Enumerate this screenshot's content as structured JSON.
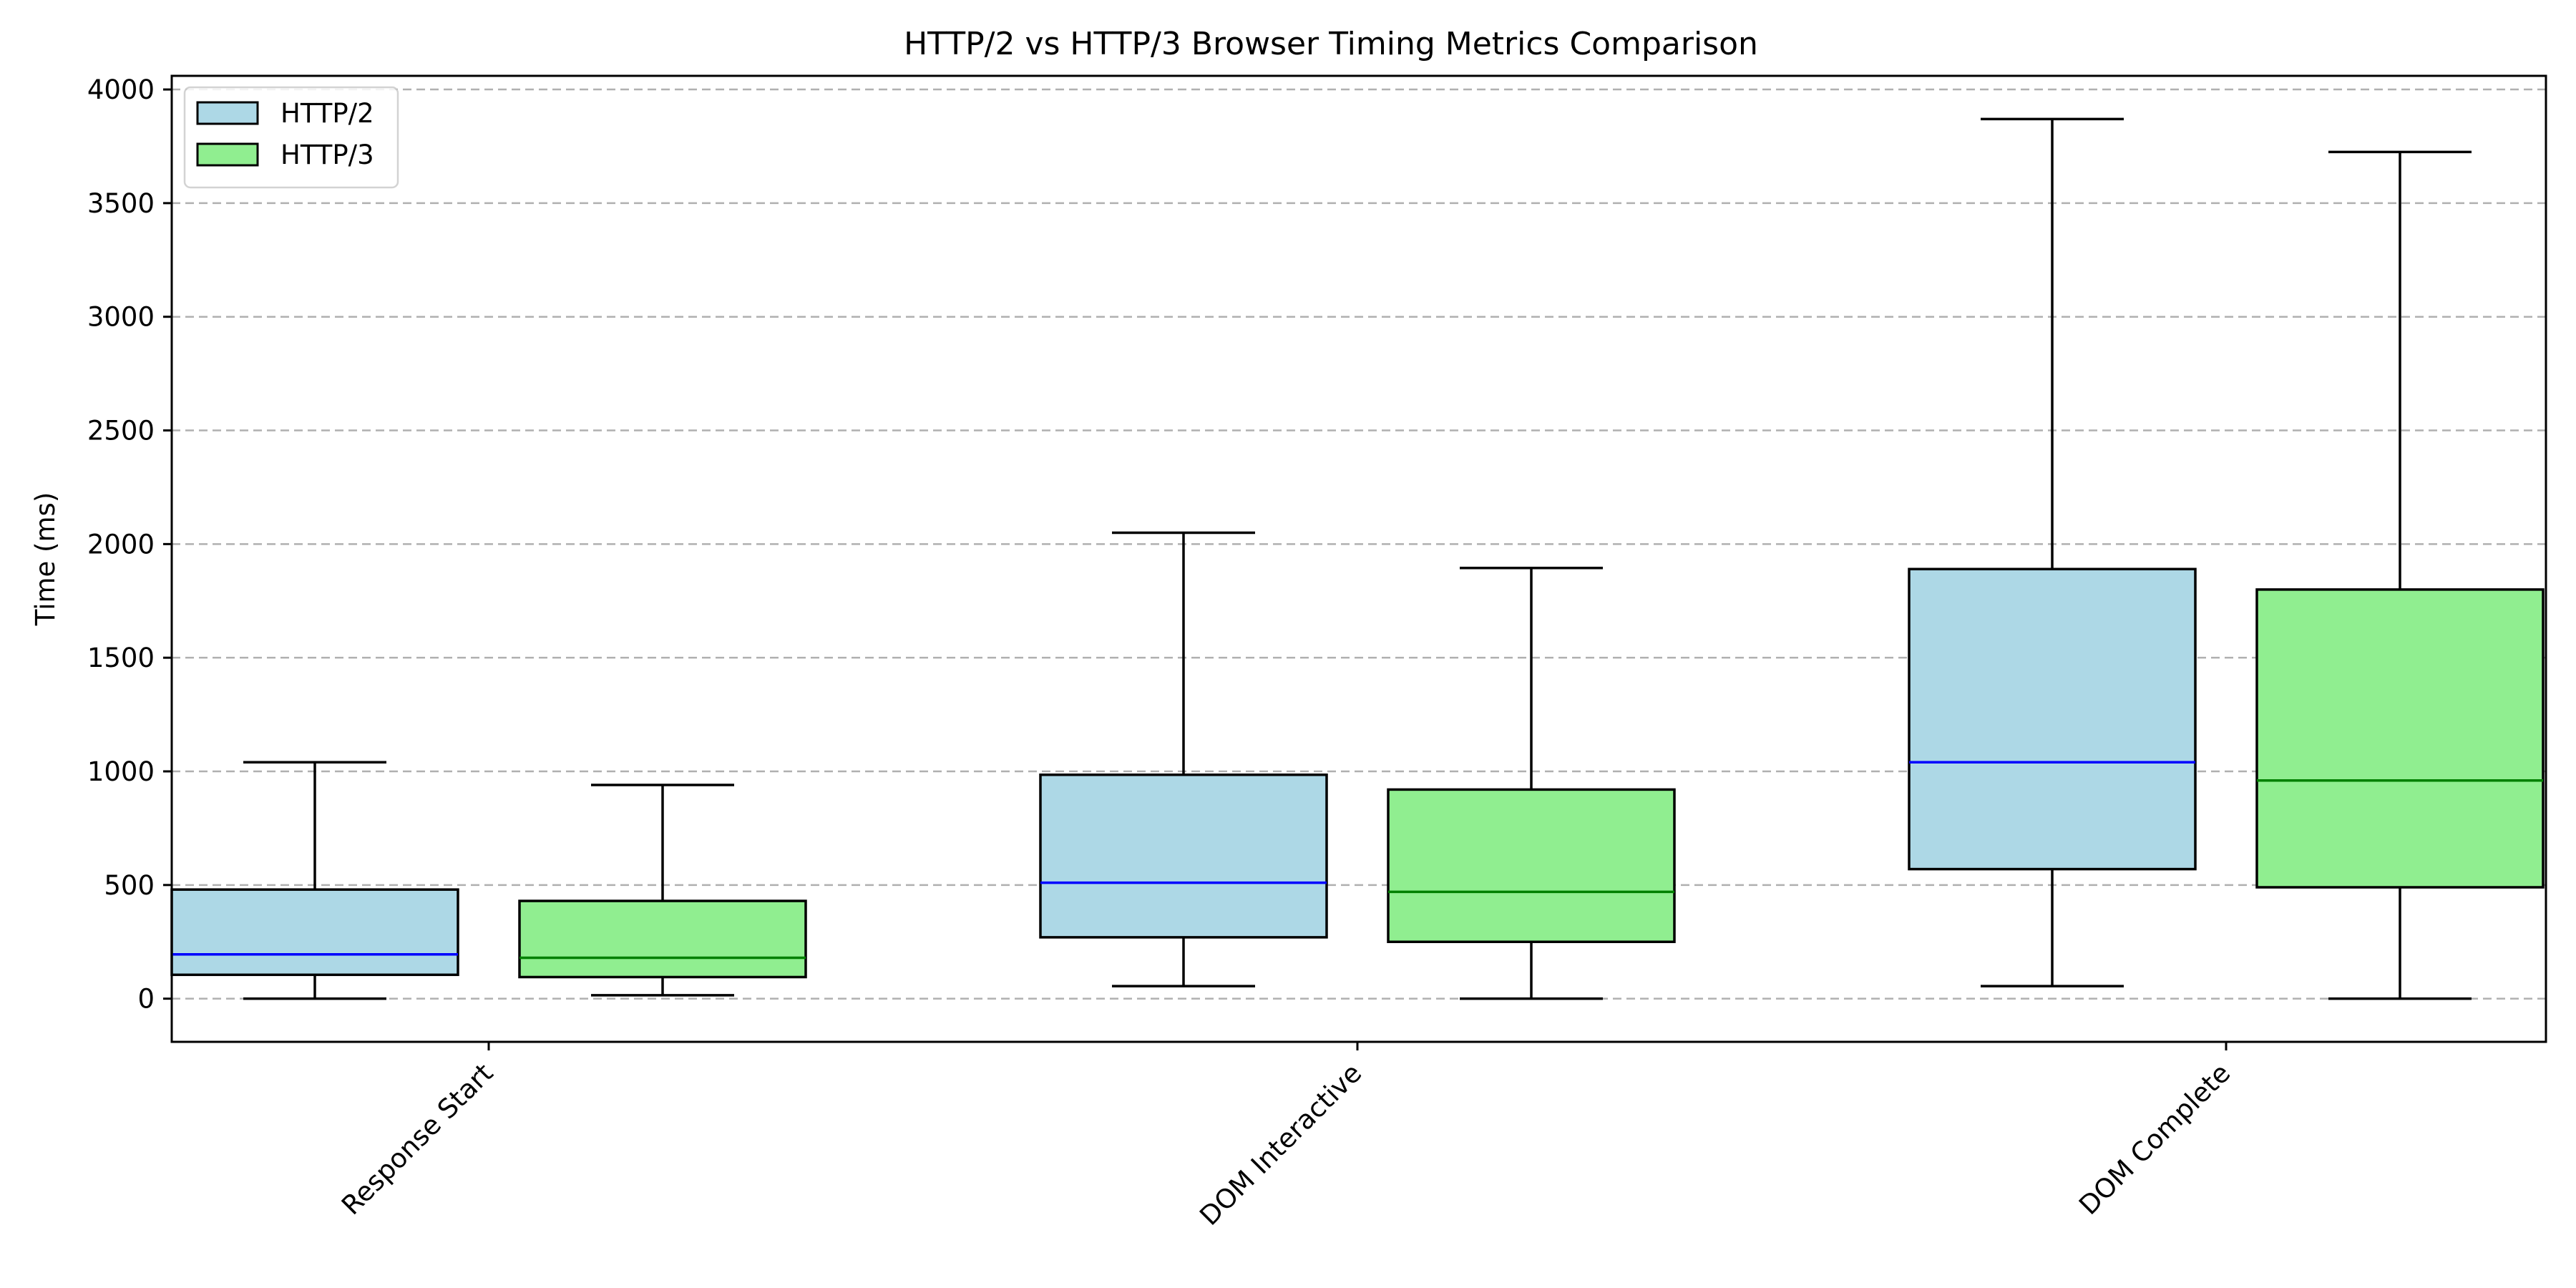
{
  "chart_data": {
    "type": "box",
    "title": "HTTP/2 vs HTTP/3 Browser Timing Metrics Comparison",
    "xlabel": "",
    "ylabel": "Time (ms)",
    "ylim": [
      -190,
      4060
    ],
    "yticks": [
      0,
      500,
      1000,
      1500,
      2000,
      2500,
      3000,
      3500,
      4000
    ],
    "grid": "horizontal dashed",
    "legend_position": "top-left",
    "categories": [
      "Response Start",
      "DOM Interactive",
      "DOM Complete"
    ],
    "series": [
      {
        "name": "HTTP/2",
        "color": "#add8e6",
        "median_color": "#0000ff",
        "boxes": [
          {
            "whisker_low": 0,
            "q1": 105,
            "median": 195,
            "q3": 480,
            "whisker_high": 1040
          },
          {
            "whisker_low": 55,
            "q1": 270,
            "median": 510,
            "q3": 985,
            "whisker_high": 2050
          },
          {
            "whisker_low": 55,
            "q1": 570,
            "median": 1040,
            "q3": 1890,
            "whisker_high": 3870
          }
        ]
      },
      {
        "name": "HTTP/3",
        "color": "#90ee90",
        "median_color": "#008000",
        "boxes": [
          {
            "whisker_low": 15,
            "q1": 95,
            "median": 180,
            "q3": 430,
            "whisker_high": 940
          },
          {
            "whisker_low": 0,
            "q1": 250,
            "median": 470,
            "q3": 920,
            "whisker_high": 1895
          },
          {
            "whisker_low": 0,
            "q1": 490,
            "median": 960,
            "q3": 1800,
            "whisker_high": 3725
          }
        ]
      }
    ]
  }
}
